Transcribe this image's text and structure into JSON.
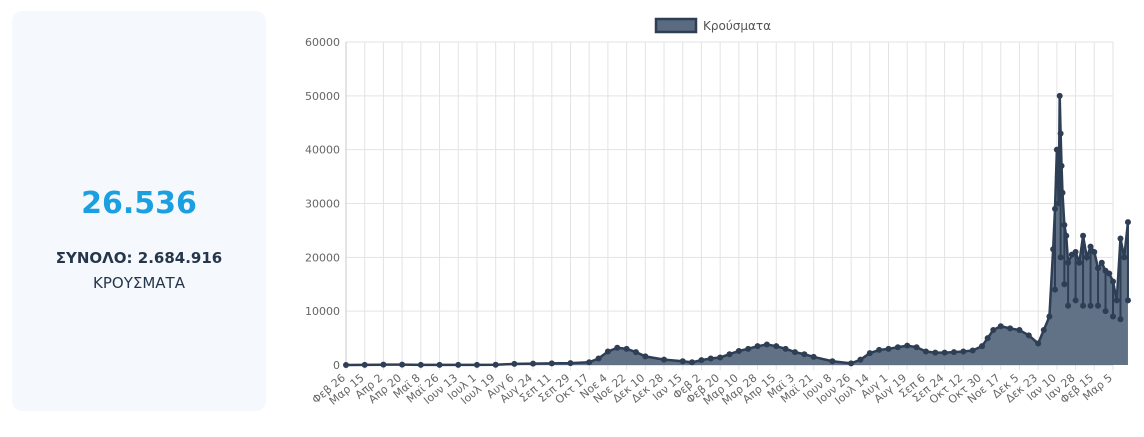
{
  "summary": {
    "today_value": "26.536",
    "total_text": "ΣΥΝΟΛΟ: 2.684.916",
    "label": "ΚΡΟΥΣΜΑΤΑ"
  },
  "colors": {
    "accent": "#1a9fe0",
    "text_dark": "#25364b",
    "series_fill": "#5a6a80",
    "series_line": "#2e3e55",
    "card_bg": "#f5f9fe"
  },
  "chart_data": {
    "type": "area",
    "legend": [
      "Κρούσματα"
    ],
    "legend_position": "top",
    "grid": true,
    "ylim": [
      0,
      60000
    ],
    "yticks": [
      0,
      10000,
      20000,
      30000,
      40000,
      50000,
      60000
    ],
    "xticks": [
      "Φεβ 26",
      "Μαρ 15",
      "Απρ 2",
      "Απρ 20",
      "Μαϊ 8",
      "Μαϊ 26",
      "Ιουν 13",
      "Ιουλ 1",
      "Ιουλ 19",
      "Αυγ 6",
      "Αυγ 24",
      "Σεπ 11",
      "Σεπ 29",
      "Οκτ 17",
      "Νοε 4",
      "Νοε 22",
      "Δεκ 10",
      "Δεκ 28",
      "Ιαν 15",
      "Φεβ 2",
      "Φεβ 20",
      "Μαρ 10",
      "Μαρ 28",
      "Απρ 15",
      "Μαϊ 3",
      "Μαϊ 21",
      "Ιουν 8",
      "Ιουν 26",
      "Ιουλ 14",
      "Αυγ 1",
      "Αυγ 19",
      "Σεπ 6",
      "Σεπ 24",
      "Οκτ 12",
      "Οκτ 30",
      "Νοε 17",
      "Δεκ 5",
      "Δεκ 23",
      "Ιαν 10",
      "Ιαν 28",
      "Φεβ 15",
      "Μαρ 5"
    ],
    "series": [
      {
        "name": "Κρούσματα",
        "points": [
          [
            0,
            0
          ],
          [
            1,
            20
          ],
          [
            2,
            60
          ],
          [
            3,
            80
          ],
          [
            4,
            30
          ],
          [
            5,
            15
          ],
          [
            6,
            20
          ],
          [
            7,
            20
          ],
          [
            8,
            40
          ],
          [
            9,
            200
          ],
          [
            10,
            250
          ],
          [
            11,
            300
          ],
          [
            12,
            350
          ],
          [
            13,
            500
          ],
          [
            13.5,
            1200
          ],
          [
            14,
            2500
          ],
          [
            14.5,
            3200
          ],
          [
            15,
            3000
          ],
          [
            15.5,
            2400
          ],
          [
            16,
            1600
          ],
          [
            17,
            1000
          ],
          [
            18,
            700
          ],
          [
            18.5,
            500
          ],
          [
            19,
            900
          ],
          [
            19.5,
            1200
          ],
          [
            20,
            1400
          ],
          [
            20.5,
            2000
          ],
          [
            21,
            2600
          ],
          [
            21.5,
            3000
          ],
          [
            22,
            3500
          ],
          [
            22.5,
            3800
          ],
          [
            23,
            3500
          ],
          [
            23.5,
            3000
          ],
          [
            24,
            2400
          ],
          [
            24.5,
            2000
          ],
          [
            25,
            1500
          ],
          [
            26,
            700
          ],
          [
            27,
            300
          ],
          [
            27.5,
            1000
          ],
          [
            28,
            2200
          ],
          [
            28.5,
            2800
          ],
          [
            29,
            3000
          ],
          [
            29.5,
            3300
          ],
          [
            30,
            3600
          ],
          [
            30.5,
            3300
          ],
          [
            31,
            2500
          ],
          [
            31.5,
            2300
          ],
          [
            32,
            2300
          ],
          [
            32.5,
            2400
          ],
          [
            33,
            2500
          ],
          [
            33.5,
            2700
          ],
          [
            34,
            3500
          ],
          [
            34.3,
            5000
          ],
          [
            34.6,
            6500
          ],
          [
            35,
            7200
          ],
          [
            35.5,
            6800
          ],
          [
            36,
            6500
          ],
          [
            36.5,
            5500
          ],
          [
            37,
            4000
          ],
          [
            37.3,
            6500
          ],
          [
            37.6,
            9000
          ],
          [
            37.8,
            21500
          ],
          [
            37.9,
            29000
          ],
          [
            38,
            40000
          ],
          [
            38.05,
            35000
          ],
          [
            38.1,
            30000
          ],
          [
            38.15,
            50000
          ],
          [
            38.2,
            43000
          ],
          [
            38.25,
            37000
          ],
          [
            38.3,
            32000
          ],
          [
            38.4,
            26000
          ],
          [
            38.5,
            24000
          ],
          [
            38.6,
            19000
          ],
          [
            38.8,
            20500
          ],
          [
            39,
            21000
          ],
          [
            39.2,
            19000
          ],
          [
            39.4,
            24000
          ],
          [
            39.6,
            20000
          ],
          [
            39.8,
            22000
          ],
          [
            40,
            21000
          ],
          [
            40.2,
            18000
          ],
          [
            40.4,
            19000
          ],
          [
            40.6,
            17500
          ],
          [
            40.8,
            17000
          ],
          [
            41,
            15500
          ],
          [
            41.2,
            12000
          ],
          [
            41.4,
            23500
          ],
          [
            41.6,
            20000
          ],
          [
            41.8,
            26536
          ]
        ],
        "lower_envelope": [
          [
            37.9,
            14000
          ],
          [
            38.2,
            20000
          ],
          [
            38.4,
            15000
          ],
          [
            38.6,
            11000
          ],
          [
            39,
            12000
          ],
          [
            39.4,
            11000
          ],
          [
            39.8,
            11000
          ],
          [
            40.2,
            11000
          ],
          [
            40.6,
            10000
          ],
          [
            41,
            9000
          ],
          [
            41.4,
            8500
          ],
          [
            41.8,
            12000
          ]
        ]
      }
    ]
  }
}
